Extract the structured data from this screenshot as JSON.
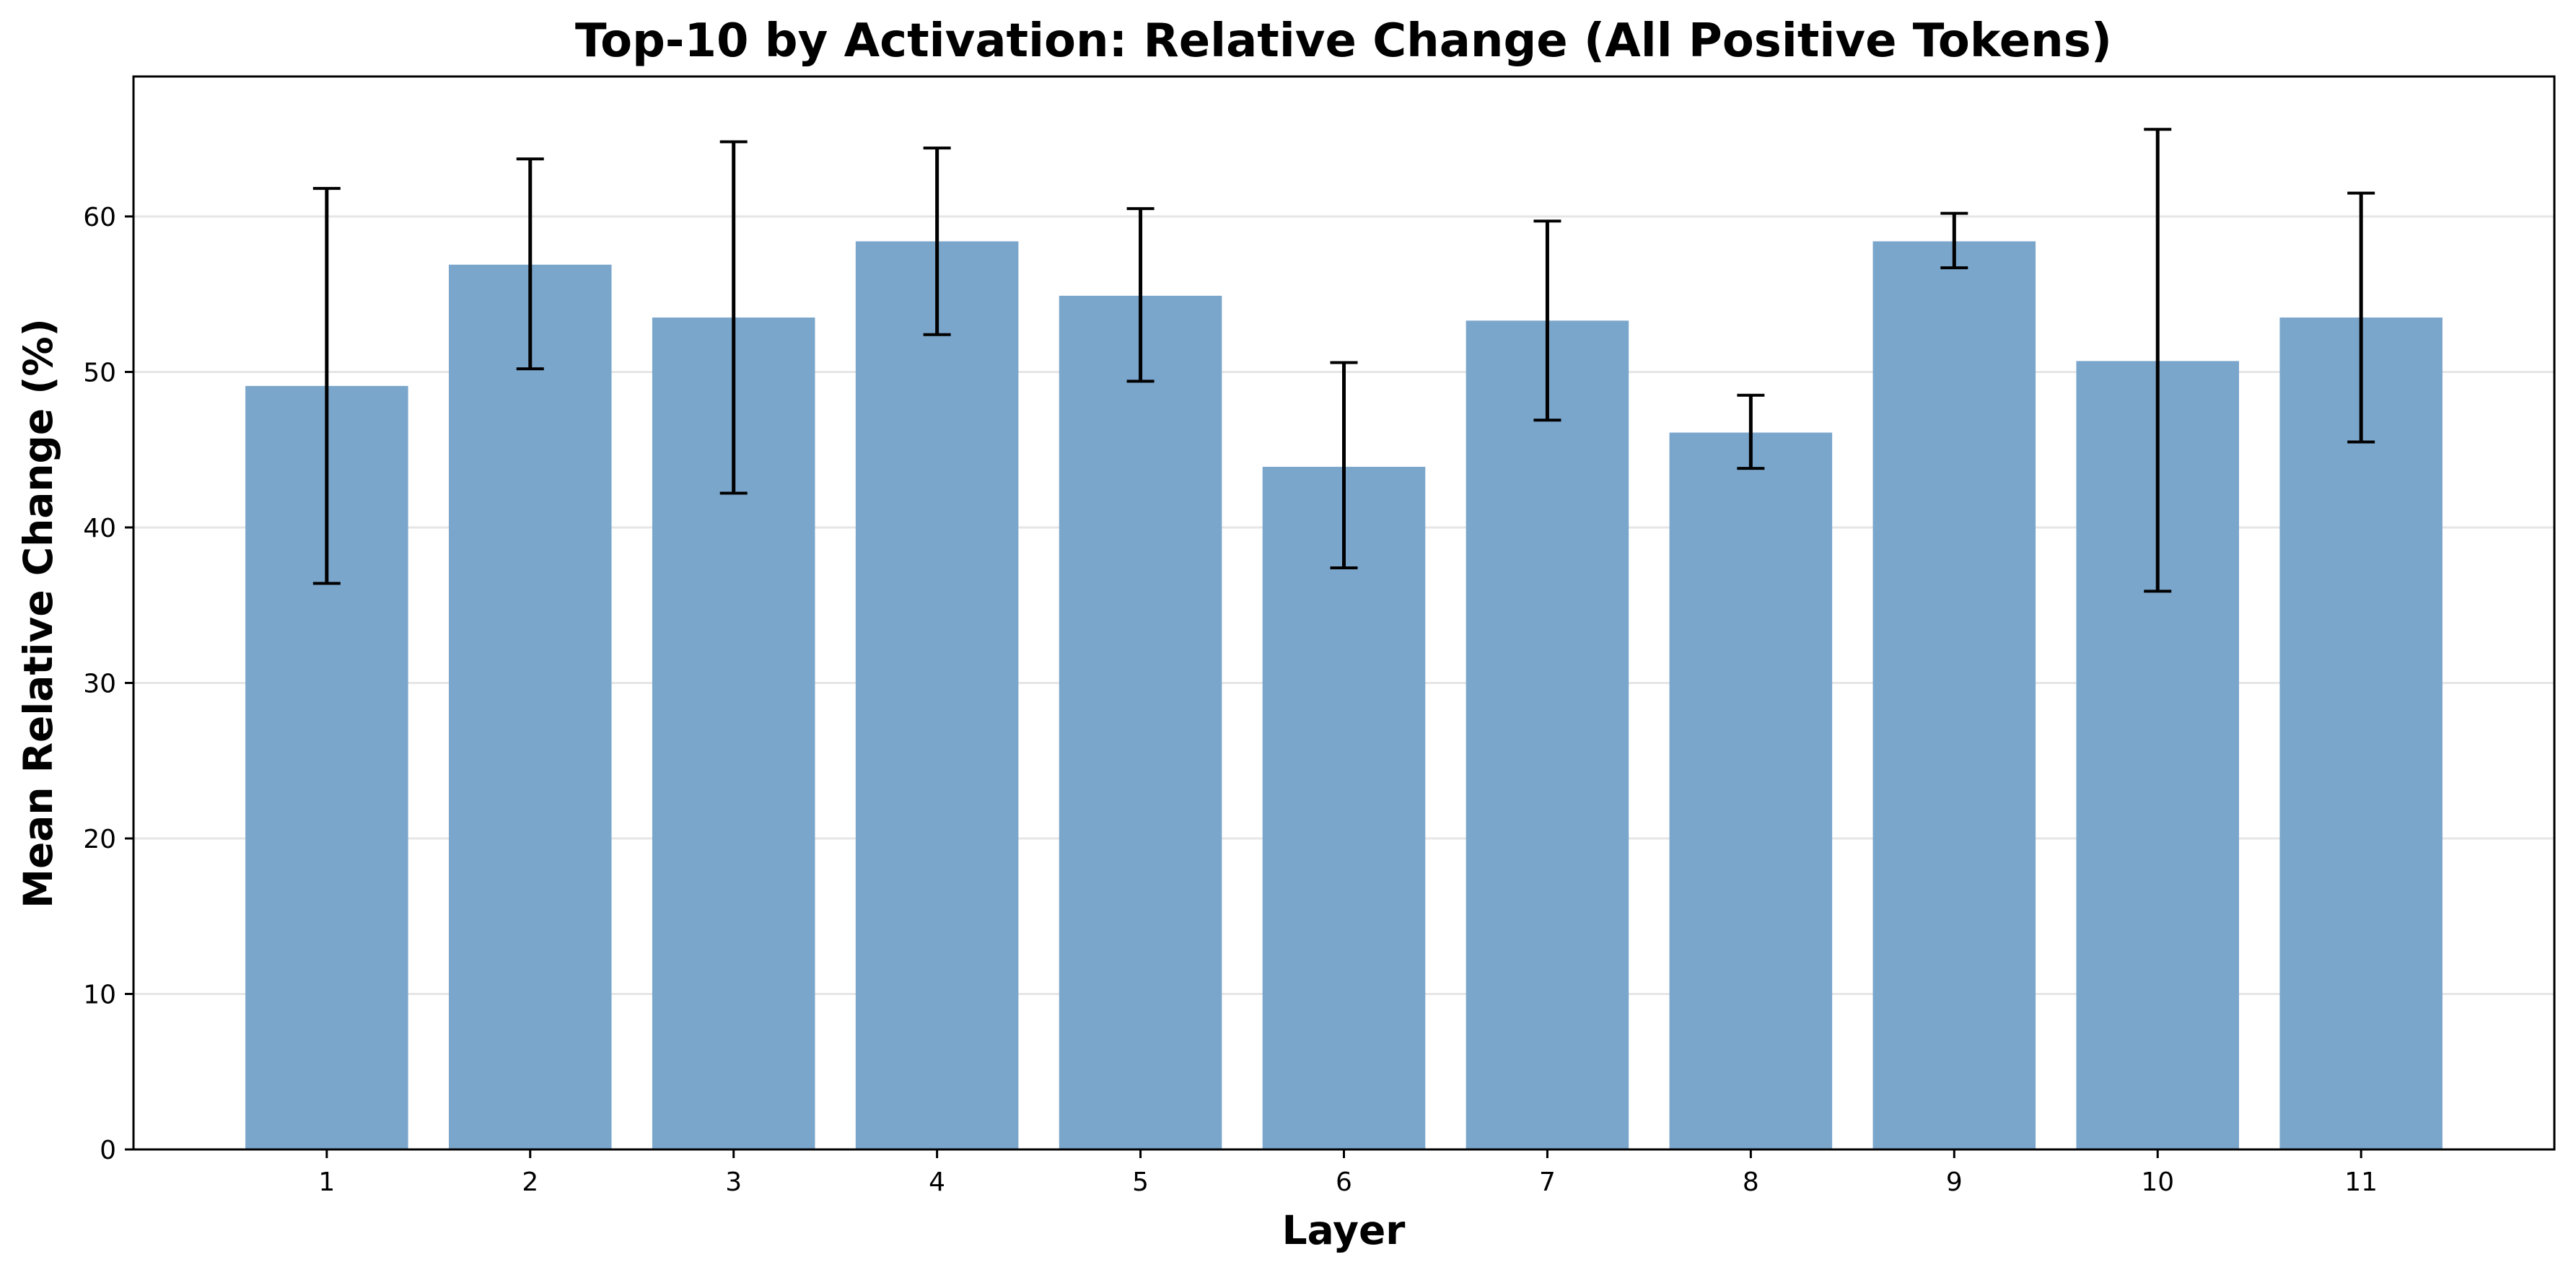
{
  "chart_data": {
    "type": "bar",
    "title": "Top-10 by Activation: Relative Change (All Positive Tokens)",
    "xlabel": "Layer",
    "ylabel": "Mean Relative Change (%)",
    "categories": [
      "1",
      "2",
      "3",
      "4",
      "5",
      "6",
      "7",
      "8",
      "9",
      "10",
      "11"
    ],
    "values": [
      49.1,
      56.9,
      53.5,
      58.4,
      54.9,
      43.9,
      53.3,
      46.1,
      58.4,
      50.7,
      53.5
    ],
    "error_low": [
      36.4,
      50.2,
      42.2,
      52.4,
      49.4,
      37.4,
      46.9,
      43.8,
      56.7,
      35.9,
      45.5
    ],
    "error_high": [
      61.8,
      63.7,
      64.8,
      64.4,
      60.5,
      50.6,
      59.7,
      48.5,
      60.2,
      65.6,
      61.5
    ],
    "ylim": [
      0,
      69
    ],
    "yticks": [
      0,
      10,
      20,
      30,
      40,
      50,
      60
    ],
    "grid": "horizontal",
    "bar_color": "#7ba6cb",
    "error_color": "#000000",
    "gridline_color": "#e6e6e6"
  }
}
